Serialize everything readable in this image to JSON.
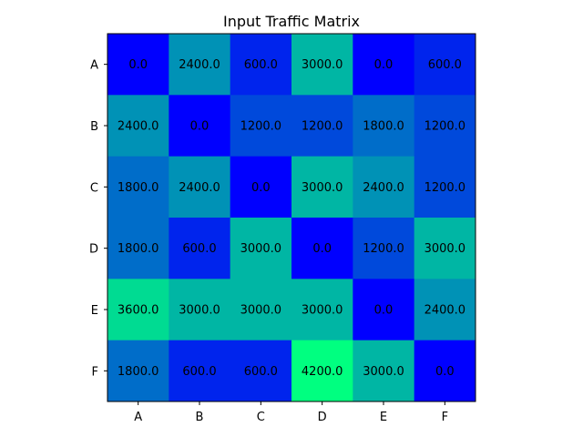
{
  "chart_data": {
    "type": "heatmap",
    "title": "Input Traffic Matrix",
    "xlabel": "",
    "ylabel": "",
    "x_categories": [
      "A",
      "B",
      "C",
      "D",
      "E",
      "F"
    ],
    "y_categories": [
      "A",
      "B",
      "C",
      "D",
      "E",
      "F"
    ],
    "values": [
      [
        0.0,
        2400.0,
        600.0,
        3000.0,
        0.0,
        600.0
      ],
      [
        2400.0,
        0.0,
        1200.0,
        1200.0,
        1800.0,
        1200.0
      ],
      [
        1800.0,
        2400.0,
        0.0,
        3000.0,
        2400.0,
        1200.0
      ],
      [
        1800.0,
        600.0,
        3000.0,
        0.0,
        1200.0,
        3000.0
      ],
      [
        3600.0,
        3000.0,
        3000.0,
        3000.0,
        0.0,
        2400.0
      ],
      [
        1800.0,
        600.0,
        600.0,
        4200.0,
        3000.0,
        0.0
      ]
    ],
    "value_range": [
      0,
      4200
    ],
    "colormap": "winter",
    "colormap_low": "#0000ff",
    "colormap_high": "#00ff80",
    "annotation_color": "#000000",
    "grid": false
  }
}
